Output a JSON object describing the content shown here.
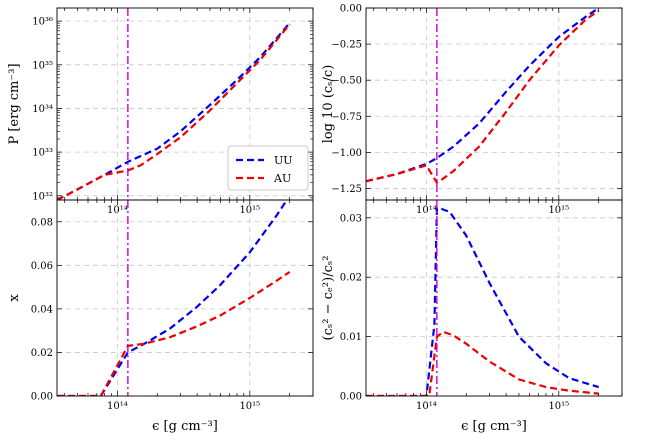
{
  "chart_data": [
    {
      "panel": "top-left",
      "type": "line",
      "ylabel": "P [erg cm⁻³]",
      "xscale": "log",
      "yscale": "log",
      "xlim": [
        35000000000000.0,
        3000000000000000.0
      ],
      "ylim": [
        8e+31,
        2e+36
      ],
      "grid": true,
      "x_ticks": [
        {
          "value": 100000000000000.0,
          "label": "10¹⁴"
        },
        {
          "value": 1000000000000000.0,
          "label": "10¹⁵"
        }
      ],
      "y_ticks": [
        {
          "value": 1e+32,
          "label": "10³²"
        },
        {
          "value": 1e+33,
          "label": "10³³"
        },
        {
          "value": 1e+34,
          "label": "10³⁴"
        },
        {
          "value": 1e+35,
          "label": "10³⁵"
        },
        {
          "value": 1e+36,
          "label": "10³⁶"
        }
      ],
      "vline": 120000000000000.0,
      "legend": {
        "placement": "right",
        "entries": [
          "UU",
          "AU"
        ]
      },
      "series": [
        {
          "name": "UU",
          "color": "#0000ee",
          "x": [
            35000000000000.0,
            50000000000000.0,
            80000000000000.0,
            120000000000000.0,
            200000000000000.0,
            300000000000000.0,
            500000000000000.0,
            800000000000000.0,
            1200000000000000.0,
            2000000000000000.0
          ],
          "y": [
            8e+31,
            1.4e+32,
            3e+32,
            6e+32,
            1.2e+33,
            3e+33,
            1.2e+34,
            4.5e+34,
            1.5e+35,
            9e+35
          ]
        },
        {
          "name": "AU",
          "color": "#ee0000",
          "x": [
            35000000000000.0,
            50000000000000.0,
            80000000000000.0,
            120000000000000.0,
            150000000000000.0,
            200000000000000.0,
            300000000000000.0,
            500000000000000.0,
            800000000000000.0,
            1200000000000000.0,
            2000000000000000.0
          ],
          "y": [
            8e+31,
            1.4e+32,
            3e+32,
            3.8e+32,
            5e+32,
            9e+32,
            2.2e+33,
            9e+33,
            3.8e+34,
            1.3e+35,
            8.5e+35
          ]
        }
      ]
    },
    {
      "panel": "top-right",
      "type": "line",
      "ylabel": "log 10 (cₛ/c)",
      "xscale": "log",
      "yscale": "linear",
      "xlim": [
        35000000000000.0,
        3000000000000000.0
      ],
      "ylim": [
        -1.33,
        0
      ],
      "grid": true,
      "x_ticks": [
        {
          "value": 100000000000000.0,
          "label": "10¹⁴"
        },
        {
          "value": 1000000000000000.0,
          "label": "10¹⁵"
        }
      ],
      "y_ticks": [
        {
          "value": -1.25,
          "label": "−1.25"
        },
        {
          "value": -1.0,
          "label": "−1.00"
        },
        {
          "value": -0.75,
          "label": "−0.75"
        },
        {
          "value": -0.5,
          "label": "−0.50"
        },
        {
          "value": -0.25,
          "label": "−0.25"
        },
        {
          "value": 0.0,
          "label": "0.00"
        }
      ],
      "vline": 120000000000000.0,
      "series": [
        {
          "name": "UU",
          "color": "#0000ee",
          "x": [
            35000000000000.0,
            60000000000000.0,
            100000000000000.0,
            120000000000000.0,
            160000000000000.0,
            250000000000000.0,
            400000000000000.0,
            600000000000000.0,
            1000000000000000.0,
            1600000000000000.0,
            2000000000000000.0
          ],
          "y": [
            -1.2,
            -1.15,
            -1.08,
            -1.04,
            -0.96,
            -0.8,
            -0.58,
            -0.4,
            -0.2,
            -0.06,
            0.0
          ]
        },
        {
          "name": "AU",
          "color": "#ee0000",
          "x": [
            35000000000000.0,
            60000000000000.0,
            100000000000000.0,
            120000000000000.0,
            130000000000000.0,
            160000000000000.0,
            250000000000000.0,
            400000000000000.0,
            600000000000000.0,
            1000000000000000.0,
            1600000000000000.0,
            2000000000000000.0
          ],
          "y": [
            -1.2,
            -1.15,
            -1.09,
            -1.21,
            -1.19,
            -1.13,
            -0.96,
            -0.72,
            -0.5,
            -0.26,
            -0.08,
            -0.02
          ]
        }
      ]
    },
    {
      "panel": "bottom-left",
      "type": "line",
      "xlabel": "ϵ [g cm⁻³]",
      "ylabel": "x",
      "xscale": "log",
      "yscale": "linear",
      "xlim": [
        35000000000000.0,
        3000000000000000.0
      ],
      "ylim": [
        0,
        0.09
      ],
      "grid": true,
      "x_ticks": [
        {
          "value": 100000000000000.0,
          "label": "10¹⁴"
        },
        {
          "value": 1000000000000000.0,
          "label": "10¹⁵"
        }
      ],
      "y_ticks": [
        {
          "value": 0.0,
          "label": "0.00"
        },
        {
          "value": 0.02,
          "label": "0.02"
        },
        {
          "value": 0.04,
          "label": "0.04"
        },
        {
          "value": 0.06,
          "label": "0.06"
        },
        {
          "value": 0.08,
          "label": "0.08"
        }
      ],
      "vline": 120000000000000.0,
      "series": [
        {
          "name": "UU",
          "color": "#0000ee",
          "x": [
            35000000000000.0,
            75000000000000.0,
            120000000000000.0,
            160000000000000.0,
            250000000000000.0,
            400000000000000.0,
            600000000000000.0,
            1000000000000000.0,
            1600000000000000.0,
            2000000000000000.0
          ],
          "y": [
            0.0,
            0.0,
            0.02,
            0.024,
            0.031,
            0.041,
            0.051,
            0.066,
            0.083,
            0.092
          ]
        },
        {
          "name": "AU",
          "color": "#ee0000",
          "x": [
            35000000000000.0,
            75000000000000.0,
            120000000000000.0,
            160000000000000.0,
            250000000000000.0,
            400000000000000.0,
            600000000000000.0,
            1000000000000000.0,
            1600000000000000.0,
            2000000000000000.0
          ],
          "y": [
            0.0,
            0.0,
            0.023,
            0.024,
            0.027,
            0.032,
            0.037,
            0.045,
            0.053,
            0.057
          ]
        }
      ]
    },
    {
      "panel": "bottom-right",
      "type": "line",
      "xlabel": "ϵ [g cm⁻³]",
      "ylabel": "(cₛ² − cₑ²)/cₛ²",
      "xscale": "log",
      "yscale": "linear",
      "xlim": [
        35000000000000.0,
        3000000000000000.0
      ],
      "ylim": [
        0,
        0.033
      ],
      "grid": true,
      "x_ticks": [
        {
          "value": 100000000000000.0,
          "label": "10¹⁴"
        },
        {
          "value": 1000000000000000.0,
          "label": "10¹⁵"
        }
      ],
      "y_ticks": [
        {
          "value": 0.0,
          "label": "0.00"
        },
        {
          "value": 0.01,
          "label": "0.01"
        },
        {
          "value": 0.02,
          "label": "0.02"
        },
        {
          "value": 0.03,
          "label": "0.03"
        }
      ],
      "vline": 120000000000000.0,
      "series": [
        {
          "name": "UU",
          "color": "#0000ee",
          "x": [
            35000000000000.0,
            100000000000000.0,
            115000000000000.0,
            120000000000000.0,
            130000000000000.0,
            150000000000000.0,
            200000000000000.0,
            300000000000000.0,
            500000000000000.0,
            800000000000000.0,
            1200000000000000.0,
            2000000000000000.0
          ],
          "y": [
            0.0,
            0.0,
            0.012,
            0.0316,
            0.0315,
            0.031,
            0.027,
            0.019,
            0.01,
            0.0055,
            0.003,
            0.0015
          ]
        },
        {
          "name": "AU",
          "color": "#ee0000",
          "x": [
            35000000000000.0,
            105000000000000.0,
            120000000000000.0,
            135000000000000.0,
            160000000000000.0,
            200000000000000.0,
            300000000000000.0,
            500000000000000.0,
            800000000000000.0,
            1200000000000000.0,
            2000000000000000.0
          ],
          "y": [
            0.0,
            0.0,
            0.01,
            0.0108,
            0.0102,
            0.0088,
            0.0058,
            0.0028,
            0.0015,
            0.0009,
            0.0004
          ]
        }
      ]
    }
  ]
}
